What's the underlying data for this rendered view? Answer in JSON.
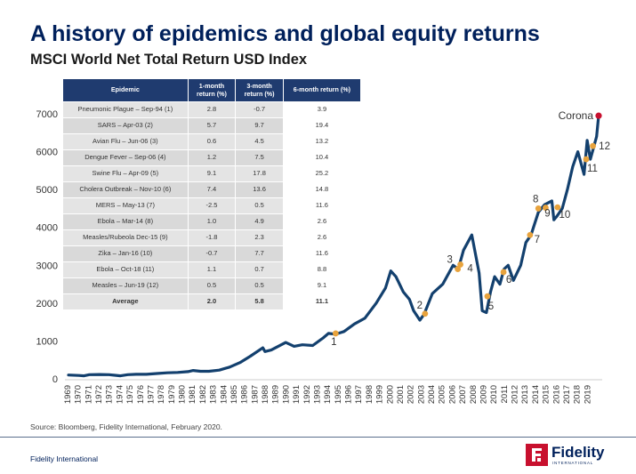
{
  "title": "A history of epidemics and global equity returns",
  "subtitle": "MSCI World Net Total Return USD Index",
  "table": {
    "headers": [
      "Epidemic",
      "1-month return (%)",
      "3-month return (%)",
      "6-month return (%)"
    ],
    "rows": [
      {
        "name": "Pneumonic Plague – Sep-94 (1)",
        "m1": "2.8",
        "m3": "-0.7",
        "m6": "3.9"
      },
      {
        "name": "SARS – Apr-03 (2)",
        "m1": "5.7",
        "m3": "9.7",
        "m6": "19.4"
      },
      {
        "name": "Avian Flu – Jun-06  (3)",
        "m1": "0.6",
        "m3": "4.5",
        "m6": "13.2"
      },
      {
        "name": "Dengue Fever – Sep-06 (4)",
        "m1": "1.2",
        "m3": "7.5",
        "m6": "10.4"
      },
      {
        "name": "Swine Flu – Apr-09 (5)",
        "m1": "9.1",
        "m3": "17.8",
        "m6": "25.2"
      },
      {
        "name": "Cholera Outbreak – Nov-10 (6)",
        "m1": "7.4",
        "m3": "13.6",
        "m6": "14.8"
      },
      {
        "name": "MERS – May-13 (7)",
        "m1": "-2.5",
        "m3": "0.5",
        "m6": "11.6"
      },
      {
        "name": "Ebola – Mar-14 (8)",
        "m1": "1.0",
        "m3": "4.9",
        "m6": "2.6"
      },
      {
        "name": "Measles/Rubeola Dec-15 (9)",
        "m1": "-1.8",
        "m3": "2.3",
        "m6": "2.6"
      },
      {
        "name": "Zika – Jan-16 (10)",
        "m1": "-0.7",
        "m3": "7.7",
        "m6": "11.6"
      },
      {
        "name": "Ebola – Oct-18 (11)",
        "m1": "1.1",
        "m3": "0.7",
        "m6": "8.8"
      },
      {
        "name": "Measles – Jun-19 (12)",
        "m1": "0.5",
        "m3": "0.5",
        "m6": "9.1"
      }
    ],
    "average": {
      "name": "Average",
      "m1": "2.0",
      "m3": "5.8",
      "m6": "11.1"
    }
  },
  "source": "Source: Bloomberg, Fidelity International, February 2020.",
  "footer": "Fidelity International",
  "logo": {
    "word": "Fidelity",
    "tagline": "INTERNATIONAL"
  },
  "colors": {
    "line": "#13406e",
    "marker": "#e8a33d",
    "corona": "#c8102e",
    "header": "#1f3b6f",
    "title": "#00205b"
  },
  "chart_data": {
    "type": "line",
    "title": "",
    "xlabel": "",
    "ylabel": "",
    "ylim": [
      0,
      7000
    ],
    "xlim": [
      1969,
      2020
    ],
    "yticks": [
      0,
      1000,
      2000,
      3000,
      4000,
      5000,
      6000,
      7000
    ],
    "xticks": [
      "1969",
      "1970",
      "1971",
      "1972",
      "1973",
      "1974",
      "1975",
      "1976",
      "1977",
      "1978",
      "1979",
      "1980",
      "1981",
      "1982",
      "1983",
      "1984",
      "1985",
      "1986",
      "1987",
      "1988",
      "1989",
      "1990",
      "1991",
      "1992",
      "1993",
      "1994",
      "1995",
      "1996",
      "1997",
      "1998",
      "1999",
      "2000",
      "2001",
      "2002",
      "2003",
      "2004",
      "2005",
      "2006",
      "2007",
      "2008",
      "2009",
      "2010",
      "2011",
      "2012",
      "2013",
      "2014",
      "2015",
      "2016",
      "2017",
      "2018",
      "2019"
    ],
    "grid": false,
    "series": [
      {
        "x": [
          1969.0,
          1970.0,
          1970.5,
          1971.0,
          1972.0,
          1972.9,
          1974.0,
          1974.7,
          1975.5,
          1976.5,
          1977.5,
          1978.5,
          1979.5,
          1980.5,
          1981.0,
          1981.7,
          1982.5,
          1983.5,
          1984.5,
          1985.5,
          1986.5,
          1987.7,
          1987.9,
          1988.5,
          1989.9,
          1990.7,
          1991.5,
          1992.5,
          1993.5,
          1994.0,
          1994.7,
          1995.5,
          1996.5,
          1997.5,
          1998.6,
          1999.5,
          2000.0,
          2000.5,
          2001.2,
          2001.8,
          2002.2,
          2002.8,
          2003.2,
          2004.0,
          2005.0,
          2006.0,
          2006.5,
          2007.0,
          2007.8,
          2008.5,
          2008.8,
          2009.2,
          2009.6,
          2010.0,
          2010.5,
          2010.9,
          2011.3,
          2011.8,
          2012.5,
          2013.0,
          2013.5,
          2014.2,
          2014.8,
          2015.5,
          2015.7,
          2016.0,
          2016.5,
          2017.0,
          2017.5,
          2018.0,
          2018.6,
          2018.9,
          2019.2,
          2019.5,
          2019.8,
          2020.0
        ],
        "y": [
          100,
          90,
          80,
          110,
          115,
          110,
          80,
          110,
          120,
          120,
          140,
          160,
          170,
          190,
          220,
          200,
          200,
          230,
          310,
          430,
          600,
          820,
          720,
          760,
          960,
          860,
          900,
          880,
          1080,
          1200,
          1180,
          1250,
          1450,
          1600,
          2000,
          2400,
          2850,
          2700,
          2300,
          2100,
          1800,
          1550,
          1700,
          2250,
          2500,
          3000,
          2900,
          3400,
          3800,
          2800,
          1800,
          1750,
          2300,
          2700,
          2500,
          2900,
          3000,
          2600,
          3000,
          3600,
          3800,
          4400,
          4600,
          4700,
          4200,
          4300,
          4500,
          5000,
          5600,
          6000,
          5400,
          6300,
          5800,
          6100,
          6400,
          6950
        ]
      }
    ],
    "events": [
      {
        "label": "1",
        "x": 1994.7,
        "y": 1200
      },
      {
        "label": "2",
        "x": 2003.3,
        "y": 1720
      },
      {
        "label": "3",
        "x": 2006.45,
        "y": 2900
      },
      {
        "label": "4",
        "x": 2006.7,
        "y": 3020
      },
      {
        "label": "5",
        "x": 2009.3,
        "y": 2180
      },
      {
        "label": "6",
        "x": 2010.85,
        "y": 2820
      },
      {
        "label": "7",
        "x": 2013.4,
        "y": 3800
      },
      {
        "label": "8",
        "x": 2014.2,
        "y": 4500
      },
      {
        "label": "9",
        "x": 2014.9,
        "y": 4520
      },
      {
        "label": "10",
        "x": 2016.05,
        "y": 4530
      },
      {
        "label": "11",
        "x": 2018.8,
        "y": 5800
      },
      {
        "label": "12",
        "x": 2019.45,
        "y": 6150
      }
    ],
    "annotation": {
      "label": "Corona",
      "x": 2020.0,
      "y": 6950
    }
  }
}
